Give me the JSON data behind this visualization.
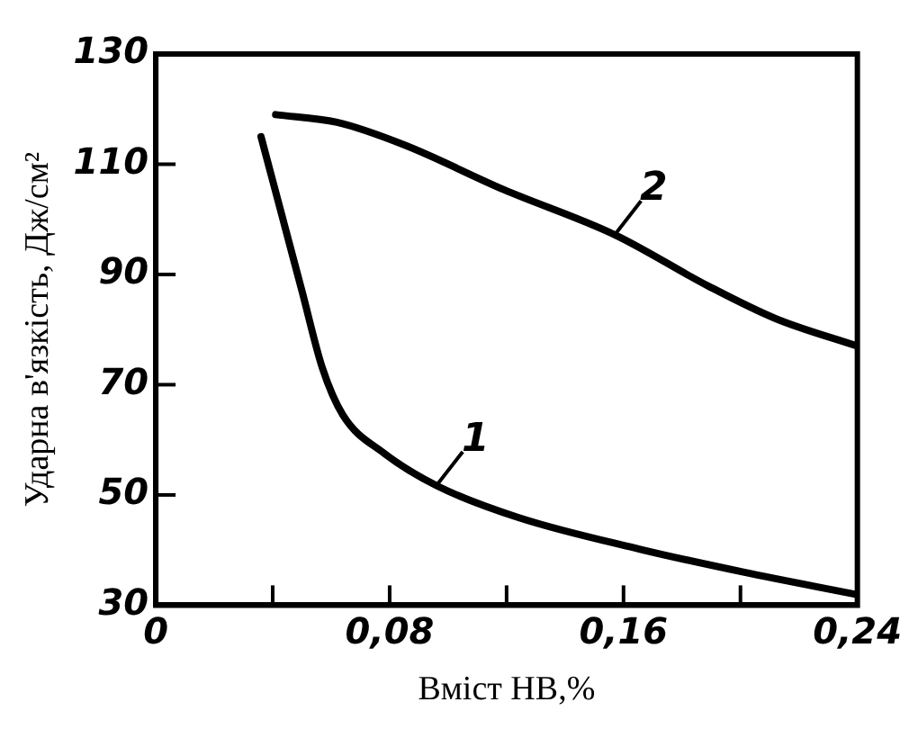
{
  "chart_data": {
    "type": "line",
    "xlabel": "Вміст НВ,%",
    "ylabel": "Ударна в'язкість, Дж/см²",
    "xlim": [
      0,
      0.24
    ],
    "ylim": [
      30,
      130
    ],
    "xticks": [
      {
        "value": 0,
        "label": "0"
      },
      {
        "value": 0.04,
        "label": null
      },
      {
        "value": 0.08,
        "label": "0,08"
      },
      {
        "value": 0.12,
        "label": null
      },
      {
        "value": 0.16,
        "label": "0,16"
      },
      {
        "value": 0.2,
        "label": null
      },
      {
        "value": 0.24,
        "label": "0,24"
      }
    ],
    "yticks": [
      30,
      50,
      70,
      90,
      110,
      130
    ],
    "grid": false,
    "legend": false,
    "marker": "none",
    "line_style": "solid",
    "series": [
      {
        "name": "1",
        "color": "#000000",
        "x": [
          0.036,
          0.043,
          0.05,
          0.057,
          0.064,
          0.078,
          0.096,
          0.124,
          0.166,
          0.201,
          0.239
        ],
        "values": [
          115,
          101,
          87,
          73,
          64.5,
          57.6,
          51.7,
          45.9,
          40.1,
          36,
          32
        ]
      },
      {
        "name": "2",
        "color": "#000000",
        "x": [
          0.041,
          0.062,
          0.085,
          0.119,
          0.157,
          0.189,
          0.212,
          0.24
        ],
        "values": [
          119,
          117.6,
          113.5,
          105.4,
          97.2,
          87.9,
          82,
          77
        ]
      }
    ]
  }
}
